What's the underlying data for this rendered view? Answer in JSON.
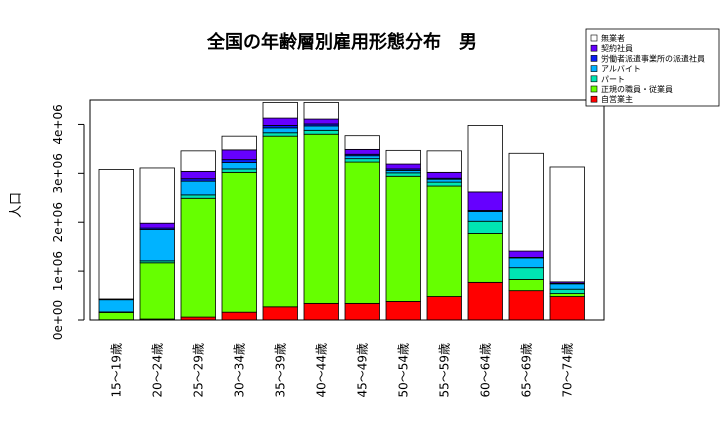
{
  "chart_data": {
    "type": "bar",
    "stacked": true,
    "title": "全国の年齢層別雇用形態分布　男",
    "xlabel": "",
    "ylabel": "人口",
    "ylim": [
      0,
      4500000
    ],
    "yticks": [
      0,
      1000000,
      2000000,
      3000000,
      4000000
    ],
    "ytick_labels": [
      "0e+00",
      "1e+06",
      "2e+06",
      "3e+06",
      "4e+06"
    ],
    "legend_position": "top-right",
    "grid": false,
    "categories": [
      "15～19歳",
      "20～24歳",
      "25～29歳",
      "30～34歳",
      "35～39歳",
      "40～44歳",
      "45～49歳",
      "50～54歳",
      "55～59歳",
      "60～64歳",
      "65～69歳",
      "70～74歳"
    ],
    "series": [
      {
        "name": "自営業主",
        "color": "#ff0000",
        "values": [
          5000,
          20000,
          60000,
          160000,
          270000,
          340000,
          340000,
          380000,
          480000,
          770000,
          600000,
          480000
        ]
      },
      {
        "name": "正規の職員・従業員",
        "color": "#66ff00",
        "values": [
          150000,
          1150000,
          2430000,
          2860000,
          3490000,
          3460000,
          2890000,
          2560000,
          2260000,
          1000000,
          230000,
          60000
        ]
      },
      {
        "name": "パート",
        "color": "#00e5b3",
        "values": [
          10000,
          40000,
          70000,
          70000,
          70000,
          80000,
          70000,
          70000,
          80000,
          250000,
          240000,
          90000
        ]
      },
      {
        "name": "アルバイト",
        "color": "#00b3ff",
        "values": [
          250000,
          640000,
          280000,
          130000,
          100000,
          90000,
          60000,
          50000,
          60000,
          200000,
          200000,
          110000
        ]
      },
      {
        "name": "労働者派遣事業所の派遣社員",
        "color": "#0a1ef5",
        "values": [
          10000,
          30000,
          50000,
          60000,
          50000,
          40000,
          30000,
          30000,
          20000,
          20000,
          10000,
          10000
        ]
      },
      {
        "name": "契約社員",
        "color": "#6600ff",
        "values": [
          5000,
          100000,
          150000,
          200000,
          150000,
          100000,
          100000,
          100000,
          120000,
          380000,
          130000,
          30000
        ]
      },
      {
        "name": "無業者",
        "color": "#ffffff",
        "values": [
          2650000,
          1130000,
          420000,
          280000,
          320000,
          340000,
          280000,
          280000,
          440000,
          1360000,
          2000000,
          2350000
        ]
      }
    ]
  }
}
